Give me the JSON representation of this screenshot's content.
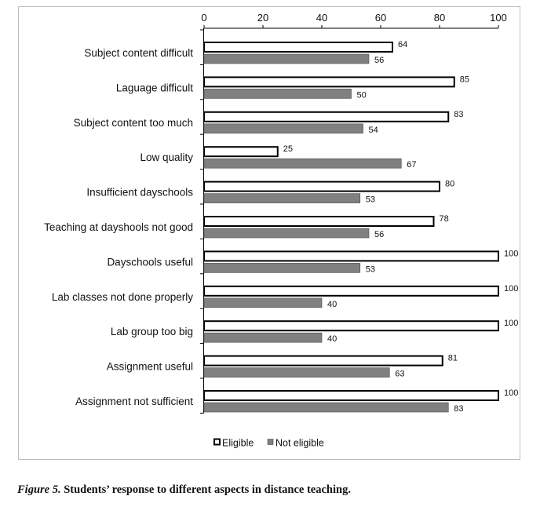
{
  "chart_data": {
    "type": "bar",
    "orientation": "horizontal",
    "categories": [
      "Subject content difficult",
      "Laguage difficult",
      "Subject content too much",
      "Low quality",
      "Insufficient dayschools",
      "Teaching at dayshools not good",
      "Dayschools useful",
      "Lab classes not done properly",
      "Lab group too big",
      "Assignment useful",
      "Assignment not sufficient"
    ],
    "series": [
      {
        "name": "Eligible",
        "values": [
          64,
          85,
          83,
          25,
          80,
          78,
          100,
          100,
          100,
          81,
          100
        ]
      },
      {
        "name": "Not eligible",
        "values": [
          56,
          50,
          54,
          67,
          53,
          56,
          53,
          40,
          40,
          63,
          83
        ]
      }
    ],
    "xlim": [
      0,
      100
    ],
    "xticks": [
      "0",
      "20",
      "40",
      "60",
      "80",
      "100"
    ],
    "axis_position": "top",
    "legend_position": "bottom-center",
    "grid": false,
    "colors": {
      "Eligible": "#ffffff",
      "Not eligible": "#808080",
      "outline": "#000000"
    }
  },
  "caption": {
    "figure_label": "Figure 5.",
    "text": " Students’ response to different aspects in distance teaching."
  }
}
